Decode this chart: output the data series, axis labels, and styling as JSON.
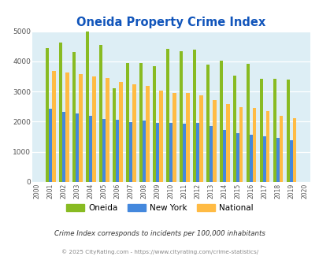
{
  "title": "Oneida Property Crime Index",
  "years": [
    2000,
    2001,
    2002,
    2003,
    2004,
    2005,
    2006,
    2007,
    2008,
    2009,
    2010,
    2011,
    2012,
    2013,
    2014,
    2015,
    2016,
    2017,
    2018,
    2019,
    2020
  ],
  "oneida": [
    null,
    4450,
    4630,
    4300,
    4980,
    4540,
    3100,
    3950,
    3940,
    3840,
    4410,
    4330,
    4380,
    3880,
    4020,
    3530,
    3930,
    3430,
    3430,
    3390,
    null
  ],
  "newyork": [
    null,
    2420,
    2320,
    2260,
    2200,
    2100,
    2070,
    1990,
    2030,
    1970,
    1970,
    1930,
    1970,
    1860,
    1720,
    1620,
    1560,
    1510,
    1460,
    1390,
    null
  ],
  "national": [
    null,
    3680,
    3630,
    3590,
    3510,
    3440,
    3330,
    3240,
    3200,
    3040,
    2960,
    2940,
    2880,
    2720,
    2580,
    2480,
    2460,
    2360,
    2200,
    2120,
    null
  ],
  "color_oneida": "#88bb22",
  "color_newyork": "#4488dd",
  "color_national": "#ffbb44",
  "bg_color": "#ddeef5",
  "ylim": [
    0,
    5000
  ],
  "yticks": [
    0,
    1000,
    2000,
    3000,
    4000,
    5000
  ],
  "title_color": "#1155bb",
  "title_fontsize": 10.5,
  "footnote1": "Crime Index corresponds to incidents per 100,000 inhabitants",
  "footnote2": "© 2025 CityRating.com - https://www.cityrating.com/crime-statistics/",
  "legend_labels": [
    "Oneida",
    "New York",
    "National"
  ],
  "xlim_left": 1999.6,
  "xlim_right": 2020.4
}
